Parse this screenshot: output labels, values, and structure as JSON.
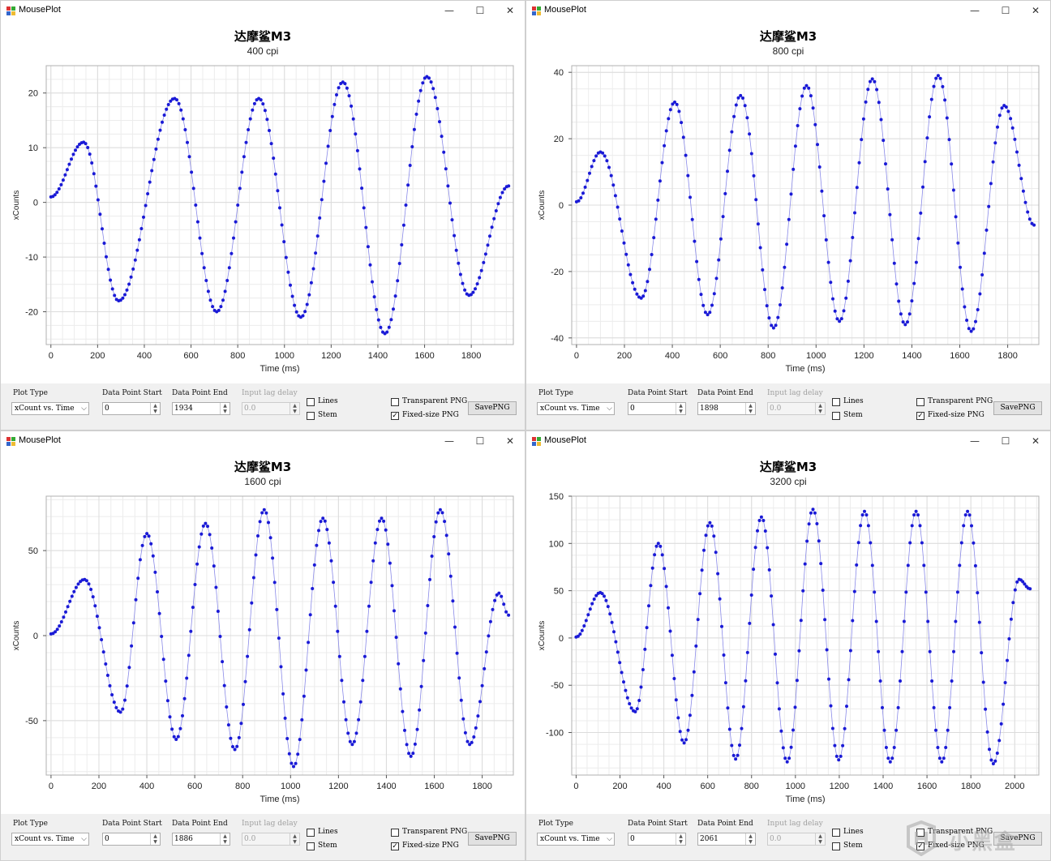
{
  "colors": {
    "series": "#1a1ad6",
    "grid": "#dcdcdc",
    "plot_border": "#b0b0b0",
    "control_bg": "#f0f0f0"
  },
  "windows": [
    {
      "app_title": "MousePlot",
      "window_controls": {
        "minimize": "—",
        "maximize": "☐",
        "close": "✕"
      },
      "plot_title": "达摩鲨M3",
      "subtitle": "400 cpi",
      "controls": {
        "plot_type_label": "Plot Type",
        "plot_type_value": "xCount vs. Time",
        "start_label": "Data Point Start",
        "start_value": "0",
        "end_label": "Data Point End",
        "end_value": "1934",
        "lag_label": "Input lag delay",
        "lag_value": "0.0",
        "lines_label": "Lines",
        "lines_checked": false,
        "stem_label": "Stem",
        "stem_checked": false,
        "transparent_label": "Transparent PNG",
        "transparent_checked": false,
        "fixed_label": "Fixed-size PNG",
        "fixed_checked": true,
        "save_label": "SavePNG"
      },
      "chart_data": {
        "type": "scatter",
        "xlabel": "Time (ms)",
        "ylabel": "xCounts",
        "xlim": [
          -20,
          1980
        ],
        "ylim": [
          -26,
          25
        ],
        "xticks": [
          0,
          200,
          400,
          600,
          800,
          1000,
          1200,
          1400,
          1600,
          1800
        ],
        "yticks": [
          -20,
          -10,
          0,
          10,
          20
        ],
        "grid": true,
        "wave": {
          "x_start": 0,
          "x_end": 1960,
          "t0": 290,
          "t_first_peak": 530,
          "period": 360,
          "lead_in_peak": 11,
          "lead_in_t": 140,
          "lead_in_trough": -18,
          "peaks": [
            19,
            19,
            22,
            23
          ],
          "troughs": [
            -20,
            -21,
            -24,
            -17
          ],
          "tail_value": 3
        }
      }
    },
    {
      "app_title": "MousePlot",
      "window_controls": {
        "minimize": "—",
        "maximize": "☐",
        "close": "✕"
      },
      "plot_title": "达摩鲨M3",
      "subtitle": "800 cpi",
      "controls": {
        "plot_type_label": "Plot Type",
        "plot_type_value": "xCount vs. Time",
        "start_label": "Data Point Start",
        "start_value": "0",
        "end_label": "Data Point End",
        "end_value": "1898",
        "lag_label": "Input lag delay",
        "lag_value": "0.0",
        "lines_label": "Lines",
        "lines_checked": false,
        "stem_label": "Stem",
        "stem_checked": false,
        "transparent_label": "Transparent PNG",
        "transparent_checked": false,
        "fixed_label": "Fixed-size PNG",
        "fixed_checked": true,
        "save_label": "SavePNG"
      },
      "chart_data": {
        "type": "scatter",
        "xlabel": "Time (ms)",
        "ylabel": "xCounts",
        "xlim": [
          -20,
          1930
        ],
        "ylim": [
          -42,
          42
        ],
        "xticks": [
          0,
          200,
          400,
          600,
          800,
          1000,
          1200,
          1400,
          1600,
          1800
        ],
        "yticks": [
          -40,
          -20,
          0,
          20,
          40
        ],
        "grid": true,
        "wave": {
          "x_start": 0,
          "x_end": 1910,
          "t0": 270,
          "t_first_peak": 410,
          "period": 275,
          "lead_in_peak": 16,
          "lead_in_t": 100,
          "lead_in_trough": -28,
          "peaks": [
            31,
            33,
            36,
            38,
            39,
            30
          ],
          "troughs": [
            -33,
            -37,
            -35,
            -36,
            -38
          ],
          "tail_value": -6
        }
      }
    },
    {
      "app_title": "MousePlot",
      "window_controls": {
        "minimize": "—",
        "maximize": "☐",
        "close": "✕"
      },
      "plot_title": "达摩鲨M3",
      "subtitle": "1600 cpi",
      "controls": {
        "plot_type_label": "Plot Type",
        "plot_type_value": "xCount vs. Time",
        "start_label": "Data Point Start",
        "start_value": "0",
        "end_label": "Data Point End",
        "end_value": "1886",
        "lag_label": "Input lag delay",
        "lag_value": "0.0",
        "lines_label": "Lines",
        "lines_checked": false,
        "stem_label": "Stem",
        "stem_checked": false,
        "transparent_label": "Transparent PNG",
        "transparent_checked": false,
        "fixed_label": "Fixed-size PNG",
        "fixed_checked": true,
        "save_label": "SavePNG"
      },
      "chart_data": {
        "type": "scatter",
        "xlabel": "Time (ms)",
        "ylabel": "xCounts",
        "xlim": [
          -20,
          1930
        ],
        "ylim": [
          -82,
          82
        ],
        "xticks": [
          0,
          200,
          400,
          600,
          800,
          1000,
          1200,
          1400,
          1600,
          1800
        ],
        "yticks": [
          -50,
          0,
          50
        ],
        "grid": true,
        "wave": {
          "x_start": 0,
          "x_end": 1910,
          "t0": 290,
          "t_first_peak": 400,
          "period": 245,
          "lead_in_peak": 33,
          "lead_in_t": 140,
          "lead_in_trough": -45,
          "peaks": [
            60,
            66,
            74,
            69,
            69,
            74,
            25
          ],
          "troughs": [
            -61,
            -67,
            -77,
            -64,
            -71,
            -64
          ],
          "tail_value": 12
        }
      }
    },
    {
      "app_title": "MousePlot",
      "window_controls": {
        "minimize": "—",
        "maximize": "☐",
        "close": "✕"
      },
      "plot_title": "达摩鲨M3",
      "subtitle": "3200 cpi",
      "controls": {
        "plot_type_label": "Plot Type",
        "plot_type_value": "xCount vs. Time",
        "start_label": "Data Point Start",
        "start_value": "0",
        "end_label": "Data Point End",
        "end_value": "2061",
        "lag_label": "Input lag delay",
        "lag_value": "0.0",
        "lines_label": "Lines",
        "lines_checked": false,
        "stem_label": "Stem",
        "stem_checked": false,
        "transparent_label": "Transparent PNG",
        "transparent_checked": false,
        "fixed_label": "Fixed-size PNG",
        "fixed_checked": true,
        "save_label": "SavePNG"
      },
      "chart_data": {
        "type": "scatter",
        "xlabel": "Time (ms)",
        "ylabel": "xCounts",
        "xlim": [
          -20,
          2110
        ],
        "ylim": [
          -145,
          150
        ],
        "xticks": [
          0,
          200,
          400,
          600,
          800,
          1000,
          1200,
          1400,
          1600,
          1800,
          2000
        ],
        "yticks": [
          -100,
          -50,
          0,
          50,
          100,
          150
        ],
        "grid": true,
        "wave": {
          "x_start": 0,
          "x_end": 2070,
          "t0": 270,
          "t_first_peak": 375,
          "period": 235,
          "lead_in_peak": 48,
          "lead_in_t": 110,
          "lead_in_trough": -78,
          "peaks": [
            100,
            122,
            128,
            136,
            134,
            134,
            134,
            62
          ],
          "troughs": [
            -111,
            -128,
            -131,
            -129,
            -131,
            -131,
            -133
          ],
          "tail_value": 52
        }
      }
    }
  ],
  "watermark": {
    "brand_text": "小黑盒"
  }
}
